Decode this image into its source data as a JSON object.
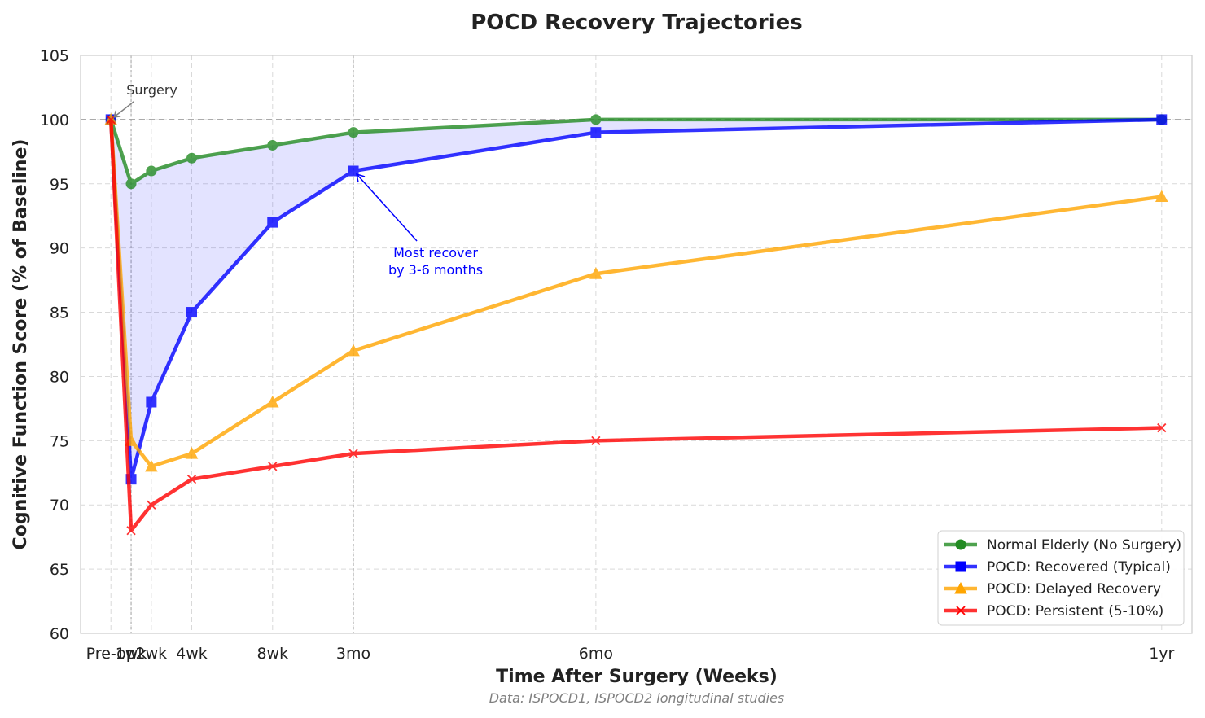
{
  "chart_data": {
    "type": "line",
    "title": "POCD Recovery Trajectories",
    "xlabel": "Time After Surgery (Weeks)",
    "ylabel": "Cognitive Function Score (% of Baseline)",
    "source": "Data: ISPOCD1, ISPOCD2 longitudinal studies",
    "x": [
      0,
      1,
      2,
      4,
      8,
      12,
      24,
      52
    ],
    "x_tick_labels": [
      "Pre-op",
      "1wk",
      "2wk",
      "4wk",
      "8wk",
      "3mo",
      "6mo",
      "1yr"
    ],
    "ylim": [
      60,
      105
    ],
    "y_ticks": [
      60,
      65,
      70,
      75,
      80,
      85,
      90,
      95,
      100,
      105
    ],
    "grid": true,
    "baseline": 100,
    "legend_position": "bottom-right",
    "series": [
      {
        "name": "Normal Elderly (No Surgery)",
        "color": "#228b22",
        "marker": "circle",
        "values": [
          100,
          95,
          96,
          97,
          98,
          99,
          100,
          100
        ]
      },
      {
        "name": "POCD: Recovered (Typical)",
        "color": "#0000ff",
        "marker": "square",
        "values": [
          100,
          72,
          78,
          85,
          92,
          96,
          99,
          100
        ]
      },
      {
        "name": "POCD: Delayed Recovery",
        "color": "#ffa500",
        "marker": "triangle",
        "values": [
          100,
          75,
          73,
          74,
          78,
          82,
          88,
          94
        ]
      },
      {
        "name": "POCD: Persistent (5-10%)",
        "color": "#ff0000",
        "marker": "x",
        "values": [
          100,
          68,
          70,
          72,
          73,
          74,
          75,
          76
        ]
      }
    ],
    "shaded_region": {
      "between": [
        "Normal Elderly (No Surgery)",
        "POCD: Recovered (Typical)"
      ],
      "color": "#0000ff"
    },
    "annotations": [
      {
        "text": "Surgery",
        "x": 0,
        "y": 100
      },
      {
        "text": "Most recover\nby 3-6 months",
        "x": 12,
        "y": 96
      }
    ]
  }
}
